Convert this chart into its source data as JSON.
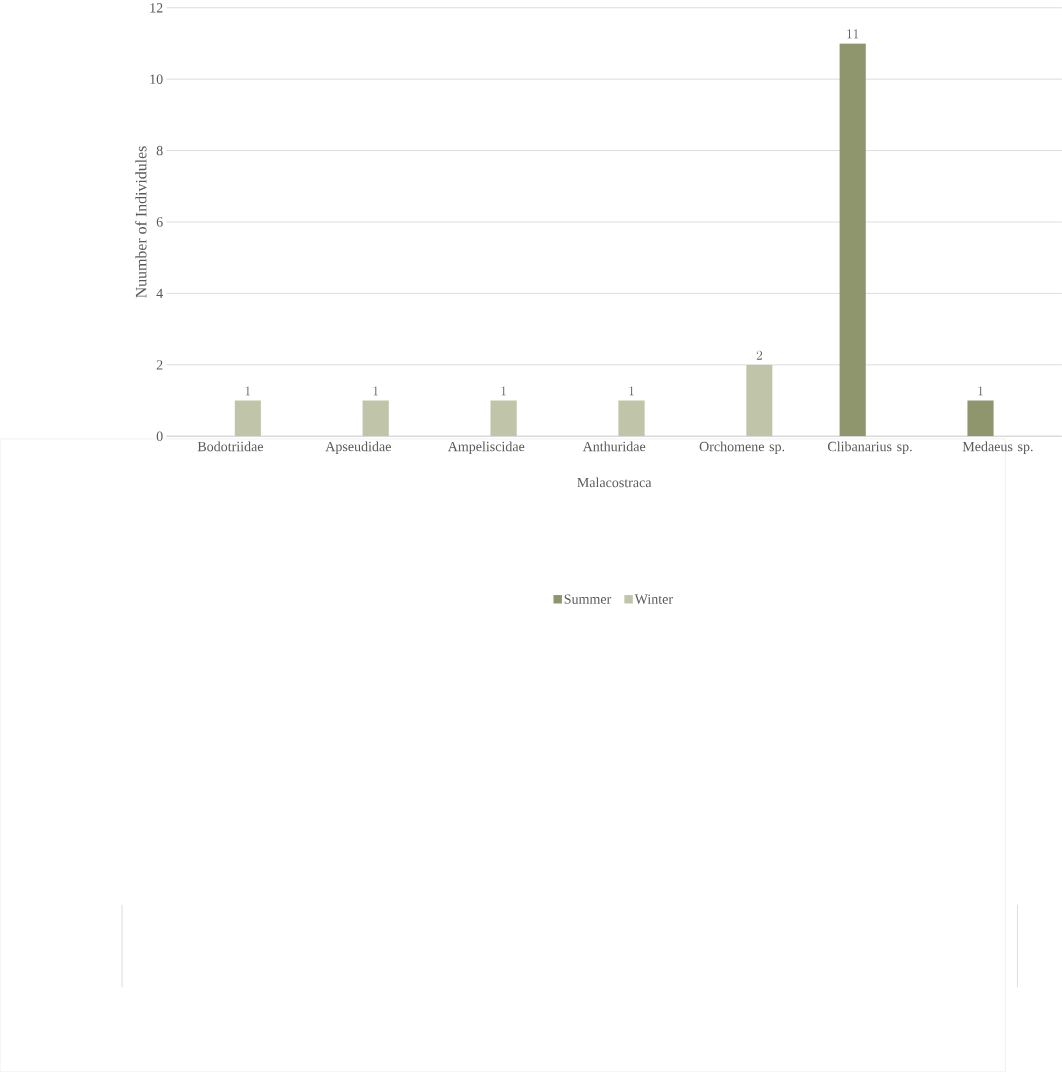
{
  "chart_data": {
    "type": "bar",
    "ylabel": "Nuumber of Individules",
    "xlabel": "Malacostraca",
    "categories": [
      "Bodotriidae",
      "Apseudidae",
      "Ampeliscidae",
      "Anthuridae",
      "Orchomene sp.",
      "Clibanarius sp.",
      "Medaeus sp."
    ],
    "series": [
      {
        "name": "Summer",
        "color": "#8f956d",
        "values": [
          null,
          null,
          null,
          null,
          null,
          11,
          1
        ]
      },
      {
        "name": "Winter",
        "color": "#c0c5aa",
        "values": [
          1,
          1,
          1,
          1,
          2,
          null,
          null
        ]
      }
    ],
    "ylim": [
      0,
      12
    ],
    "yticks": [
      0,
      2,
      4,
      6,
      8,
      10,
      12
    ],
    "grid": "y",
    "legend": "bottom",
    "data_labels": true
  }
}
